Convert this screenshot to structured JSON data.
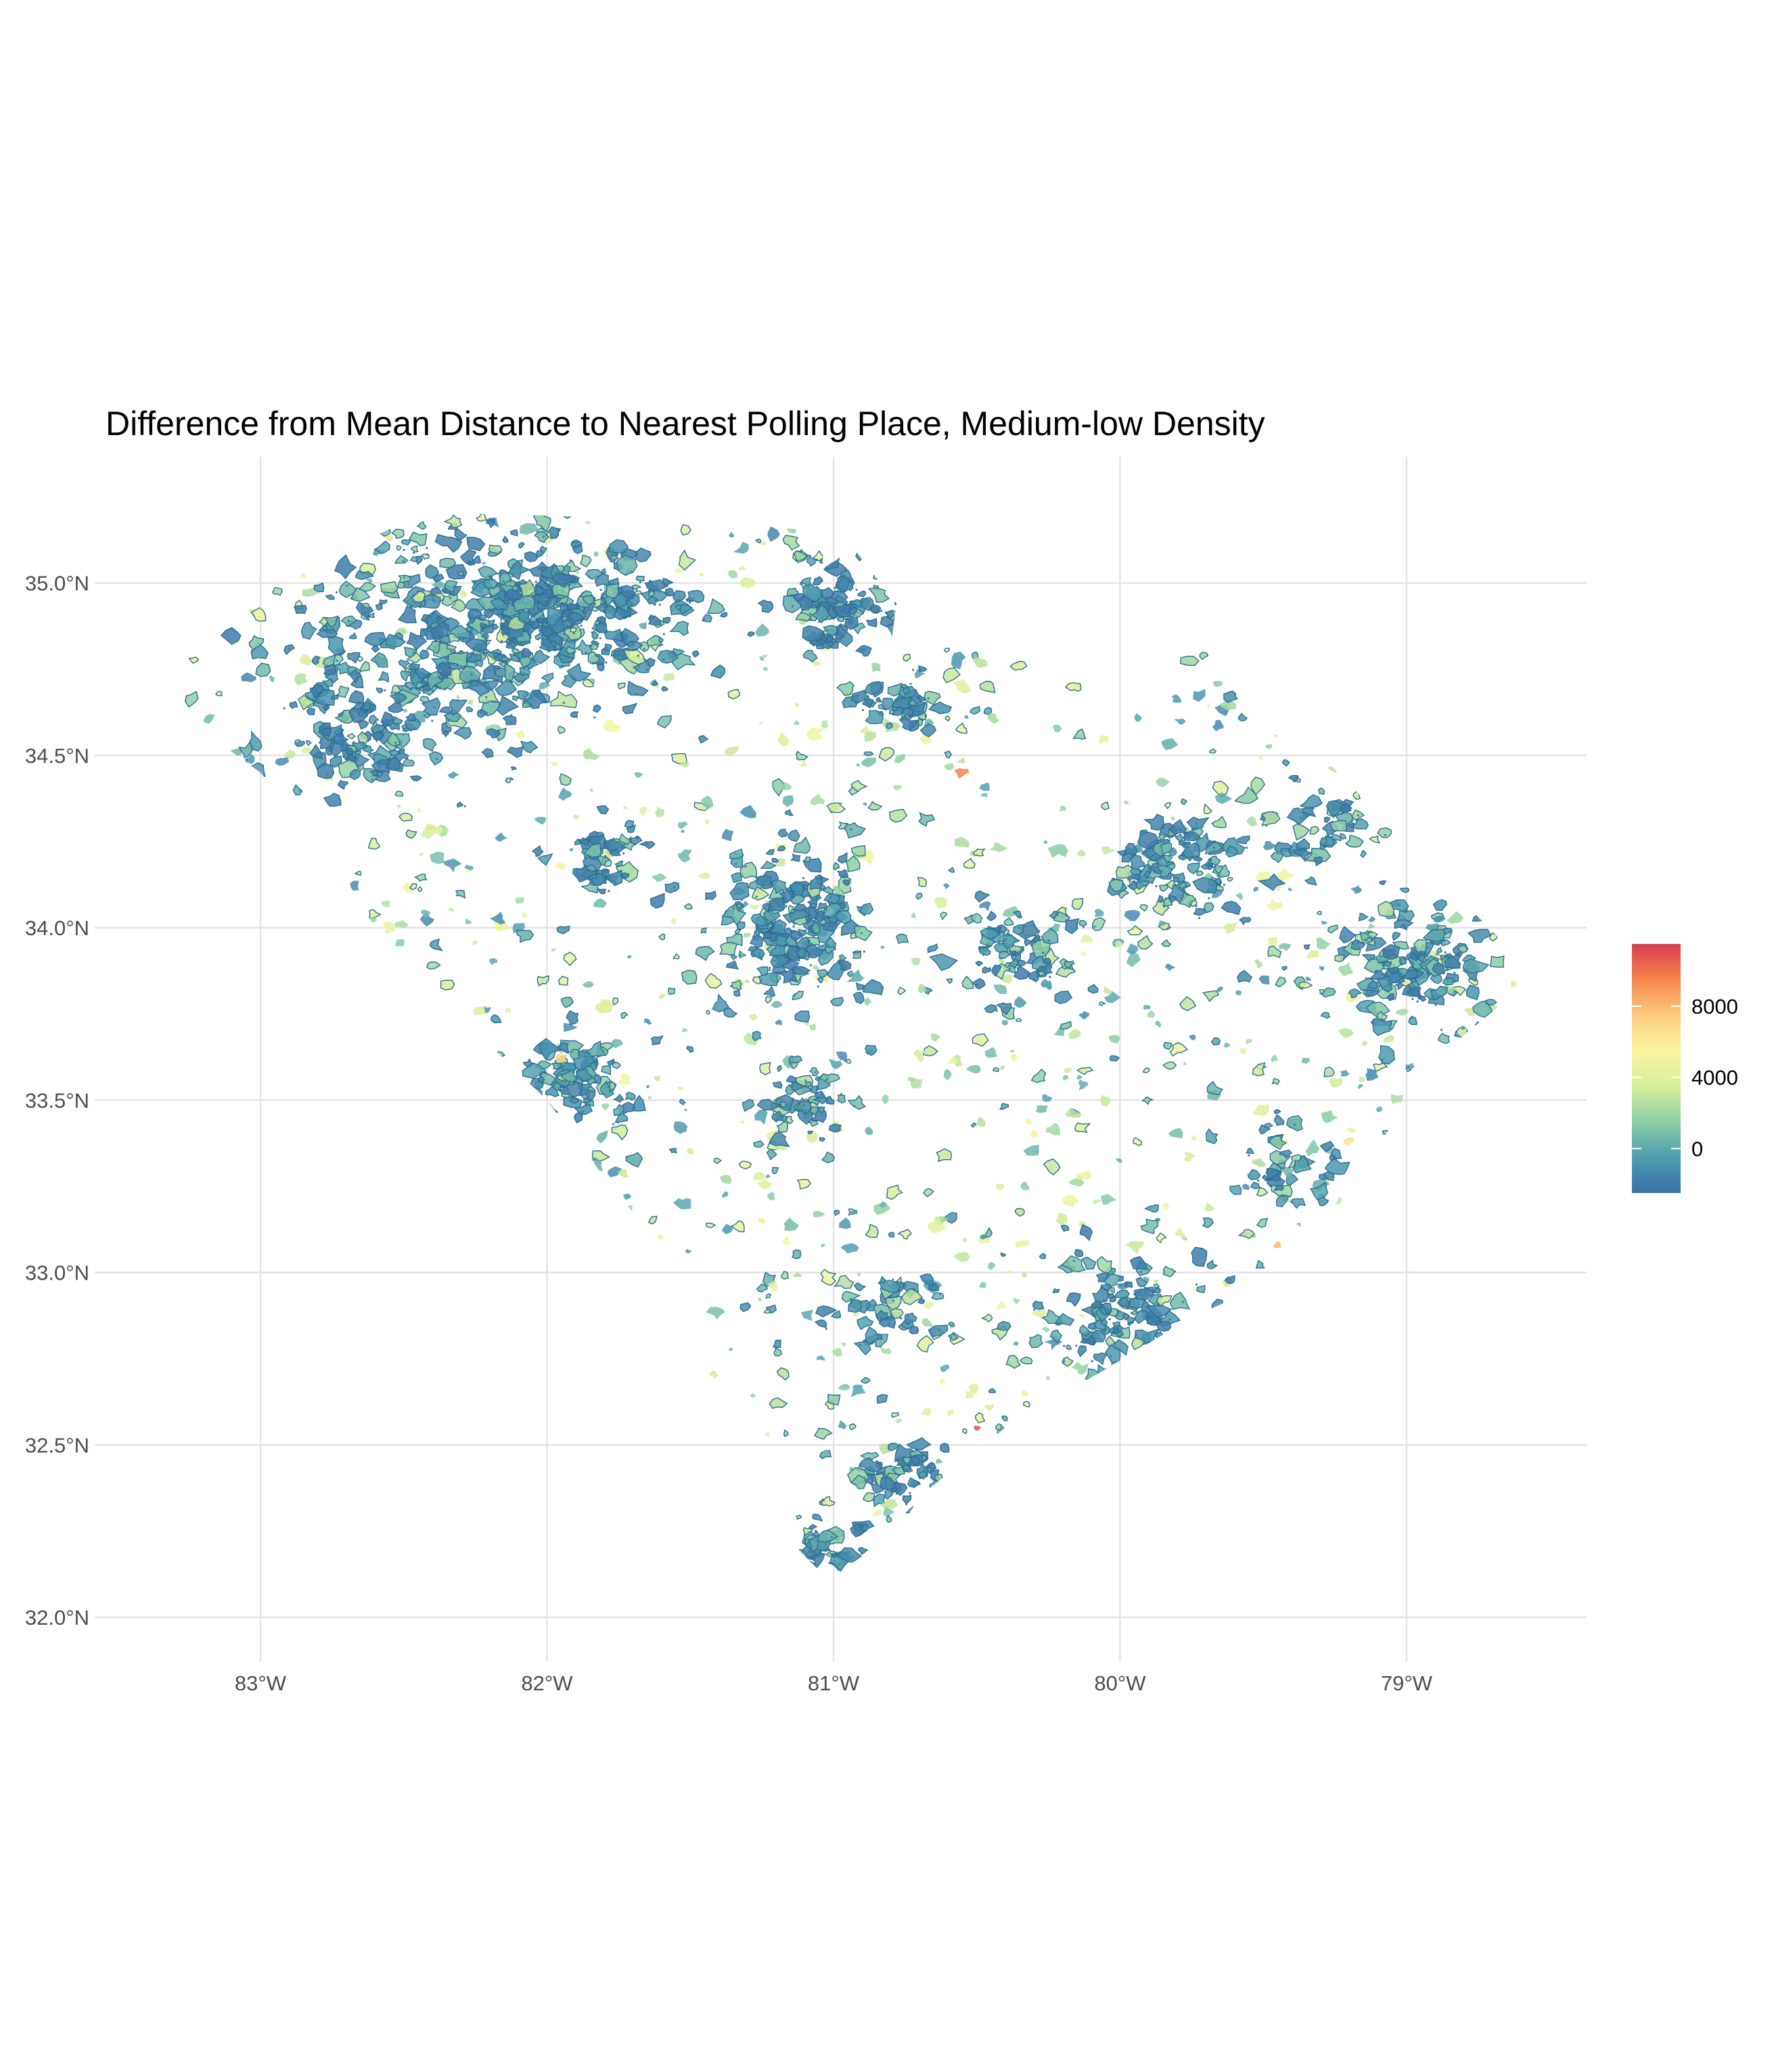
{
  "chart_data": {
    "type": "choropleth-map",
    "title": "Difference from Mean Distance to Nearest Polling Place,  Medium-low Density",
    "region": "South Carolina",
    "xlabel": "",
    "ylabel": "",
    "x_ticks": [
      {
        "value": -83,
        "label": "83°W"
      },
      {
        "value": -82,
        "label": "82°W"
      },
      {
        "value": -81,
        "label": "81°W"
      },
      {
        "value": -80,
        "label": "80°W"
      },
      {
        "value": -79,
        "label": "79°W"
      }
    ],
    "y_ticks": [
      {
        "value": 32.0,
        "label": "32.0°N"
      },
      {
        "value": 32.5,
        "label": "32.5°N"
      },
      {
        "value": 33.0,
        "label": "33.0°N"
      },
      {
        "value": 33.5,
        "label": "33.5°N"
      },
      {
        "value": 34.0,
        "label": "34.0°N"
      },
      {
        "value": 34.5,
        "label": "34.5°N"
      },
      {
        "value": 35.0,
        "label": "35.0°N"
      }
    ],
    "xlim": [
      -83.5,
      -78.4
    ],
    "ylim": [
      31.95,
      35.35
    ],
    "grid": true,
    "legend": {
      "placement": "right",
      "title": "",
      "ticks": [
        {
          "value": 0,
          "label": "0"
        },
        {
          "value": 4000,
          "label": "4000"
        },
        {
          "value": 8000,
          "label": "8000"
        }
      ],
      "range": [
        -2500,
        11500
      ],
      "colors": [
        "#3A6FAA",
        "#4E9DB0",
        "#8CCFA5",
        "#D8EE9A",
        "#F9F6A2",
        "#FDCB7D",
        "#F6854C",
        "#D53E4F"
      ]
    },
    "outline_color": "#2E6E8E",
    "clusters": [
      {
        "lon": -82.4,
        "lat": 34.82,
        "size": 0.5,
        "count": 260
      },
      {
        "lon": -82.05,
        "lat": 34.95,
        "size": 0.3,
        "count": 130
      },
      {
        "lon": -81.95,
        "lat": 34.95,
        "size": 0.2,
        "count": 60
      },
      {
        "lon": -82.65,
        "lat": 34.55,
        "size": 0.22,
        "count": 70
      },
      {
        "lon": -81.7,
        "lat": 34.9,
        "size": 0.25,
        "count": 80
      },
      {
        "lon": -81.0,
        "lat": 34.94,
        "size": 0.22,
        "count": 80
      },
      {
        "lon": -81.15,
        "lat": 34.02,
        "size": 0.3,
        "count": 160
      },
      {
        "lon": -80.75,
        "lat": 34.65,
        "size": 0.15,
        "count": 40
      },
      {
        "lon": -79.8,
        "lat": 34.19,
        "size": 0.22,
        "count": 80
      },
      {
        "lon": -80.35,
        "lat": 33.92,
        "size": 0.2,
        "count": 60
      },
      {
        "lon": -79.0,
        "lat": 33.9,
        "size": 0.3,
        "count": 110
      },
      {
        "lon": -81.9,
        "lat": 33.55,
        "size": 0.2,
        "count": 70
      },
      {
        "lon": -80.0,
        "lat": 32.86,
        "size": 0.3,
        "count": 110
      },
      {
        "lon": -80.75,
        "lat": 32.42,
        "size": 0.15,
        "count": 50
      },
      {
        "lon": -81.0,
        "lat": 32.22,
        "size": 0.12,
        "count": 30
      },
      {
        "lon": -81.8,
        "lat": 34.2,
        "size": 0.15,
        "count": 40
      },
      {
        "lon": -81.1,
        "lat": 33.5,
        "size": 0.15,
        "count": 40
      },
      {
        "lon": -79.4,
        "lat": 33.3,
        "size": 0.2,
        "count": 40
      },
      {
        "lon": -79.3,
        "lat": 34.3,
        "size": 0.2,
        "count": 40
      },
      {
        "lon": -80.8,
        "lat": 32.9,
        "size": 0.2,
        "count": 40
      }
    ],
    "background_features": 900,
    "accent_features": [
      {
        "lon": -82.55,
        "lat": 35.13,
        "value": 6500
      },
      {
        "lon": -82.78,
        "lat": 35.1,
        "value": 7200
      },
      {
        "lon": -82.85,
        "lat": 35.02,
        "value": 6000
      },
      {
        "lon": -80.55,
        "lat": 34.45,
        "value": 9500
      },
      {
        "lon": -81.95,
        "lat": 33.62,
        "value": 7000
      },
      {
        "lon": -79.2,
        "lat": 33.38,
        "value": 6500
      },
      {
        "lon": -80.3,
        "lat": 33.4,
        "value": 6000
      },
      {
        "lon": -79.45,
        "lat": 33.08,
        "value": 8000
      },
      {
        "lon": -80.5,
        "lat": 32.55,
        "value": 11000
      },
      {
        "lon": -81.25,
        "lat": 33.15,
        "value": 6500
      }
    ]
  }
}
